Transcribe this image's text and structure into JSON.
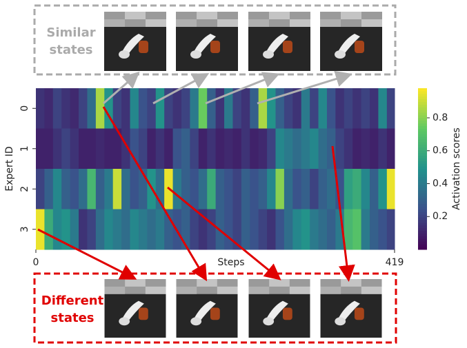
{
  "chart_data": {
    "type": "heatmap",
    "annotations": {
      "similar": [
        "Similar",
        "states"
      ],
      "different": [
        "Different",
        "states"
      ]
    },
    "xlabel": "Steps",
    "ylabel": "Expert ID",
    "colorbar_label": "Activation scores",
    "categories": [
      "0",
      "1",
      "2",
      "3"
    ],
    "x": [
      0,
      10,
      20,
      30,
      40,
      50,
      60,
      70,
      80,
      90,
      100,
      110,
      120,
      130,
      140,
      150,
      160,
      170,
      180,
      190,
      200,
      210,
      220,
      230,
      240,
      250,
      260,
      270,
      280,
      290,
      300,
      310,
      320,
      330,
      340,
      350,
      360,
      370,
      380,
      390,
      400,
      410
    ],
    "xlim": [
      0,
      419
    ],
    "xticks": [
      0,
      419
    ],
    "z": [
      [
        0.15,
        0.12,
        0.2,
        0.15,
        0.12,
        0.2,
        0.35,
        0.85,
        0.5,
        0.2,
        0.15,
        0.45,
        0.25,
        0.2,
        0.5,
        0.2,
        0.15,
        0.2,
        0.4,
        0.75,
        0.3,
        0.15,
        0.4,
        0.2,
        0.15,
        0.3,
        0.85,
        0.5,
        0.3,
        0.2,
        0.15,
        0.4,
        0.2,
        0.45,
        0.25,
        0.15,
        0.2,
        0.15,
        0.2,
        0.15,
        0.45,
        0.2
      ],
      [
        0.1,
        0.1,
        0.15,
        0.2,
        0.15,
        0.1,
        0.1,
        0.12,
        0.1,
        0.1,
        0.15,
        0.25,
        0.2,
        0.1,
        0.15,
        0.1,
        0.25,
        0.3,
        0.2,
        0.1,
        0.15,
        0.1,
        0.12,
        0.1,
        0.15,
        0.1,
        0.12,
        0.2,
        0.45,
        0.4,
        0.35,
        0.4,
        0.45,
        0.35,
        0.3,
        0.2,
        0.15,
        0.1,
        0.12,
        0.1,
        0.15,
        0.1
      ],
      [
        0.2,
        0.3,
        0.45,
        0.3,
        0.25,
        0.35,
        0.65,
        0.3,
        0.4,
        0.9,
        0.35,
        0.25,
        0.3,
        0.5,
        0.35,
        0.95,
        0.4,
        0.3,
        0.25,
        0.35,
        0.6,
        0.3,
        0.25,
        0.2,
        0.3,
        0.25,
        0.3,
        0.45,
        0.8,
        0.35,
        0.25,
        0.3,
        0.2,
        0.3,
        0.35,
        0.25,
        0.55,
        0.6,
        0.45,
        0.3,
        0.5,
        0.95
      ],
      [
        0.95,
        0.6,
        0.45,
        0.5,
        0.4,
        0.15,
        0.2,
        0.35,
        0.45,
        0.4,
        0.35,
        0.45,
        0.4,
        0.35,
        0.4,
        0.3,
        0.25,
        0.3,
        0.2,
        0.15,
        0.2,
        0.3,
        0.25,
        0.2,
        0.3,
        0.25,
        0.2,
        0.15,
        0.25,
        0.35,
        0.45,
        0.5,
        0.4,
        0.35,
        0.3,
        0.4,
        0.65,
        0.7,
        0.4,
        0.3,
        0.25,
        0.2
      ]
    ],
    "zlim": [
      0,
      0.98
    ],
    "zticks": [
      0.2,
      0.4,
      0.6,
      0.8
    ],
    "colormap": "viridis"
  }
}
